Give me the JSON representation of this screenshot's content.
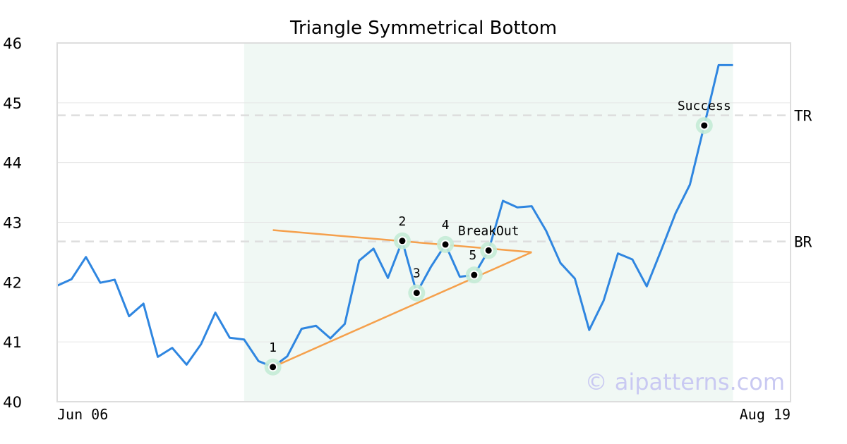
{
  "chart_data": {
    "type": "line",
    "title": "Triangle Symmetrical Bottom",
    "xlabel": "",
    "ylabel": "",
    "ylim": [
      40,
      46
    ],
    "yticks": [
      40,
      41,
      42,
      43,
      44,
      45,
      46
    ],
    "x_first_label": "Jun 06",
    "x_last_label": "Aug 19",
    "x_range": [
      0,
      51
    ],
    "grid": "horizontal",
    "series": [
      {
        "color": "#2f86e0",
        "x": [
          0,
          1,
          2,
          3,
          4,
          5,
          6,
          7,
          8,
          9,
          10,
          11,
          12,
          13,
          14,
          15,
          16,
          17,
          18,
          19,
          20,
          21,
          22,
          23,
          24,
          25,
          26,
          27,
          28,
          29,
          30,
          31,
          32,
          33,
          34,
          35,
          36,
          37,
          38,
          39,
          40,
          41,
          42,
          43,
          44,
          45,
          46,
          47,
          48,
          49,
          50,
          51
        ],
        "values": [
          41.94,
          42.05,
          42.42,
          41.99,
          42.04,
          41.43,
          41.64,
          40.75,
          40.9,
          40.62,
          40.96,
          41.49,
          41.07,
          41.04,
          40.68,
          40.58,
          40.76,
          41.22,
          41.27,
          41.06,
          41.3,
          42.36,
          42.56,
          42.07,
          42.69,
          41.82,
          42.26,
          42.63,
          42.09,
          42.12,
          42.53,
          43.36,
          43.25,
          43.27,
          42.86,
          42.32,
          42.06,
          41.2,
          41.69,
          42.48,
          42.38,
          41.93,
          42.53,
          43.15,
          43.63,
          44.62,
          45.63,
          45.63,
          null,
          null,
          null,
          null
        ]
      }
    ],
    "shaded_range": [
      13,
      47
    ],
    "shaded_color": "#f0f8f4",
    "levels": [
      {
        "label": "TR",
        "value": 44.79
      },
      {
        "label": "BR",
        "value": 42.68
      }
    ],
    "trendlines": [
      {
        "x": [
          15,
          33
        ],
        "y": [
          42.87,
          42.5
        ],
        "color": "#f5a04c"
      },
      {
        "x": [
          15,
          33
        ],
        "y": [
          40.58,
          42.5
        ],
        "color": "#f5a04c"
      }
    ],
    "markers": [
      {
        "label": "1",
        "x": 15,
        "y": 40.58,
        "label_pos": "above"
      },
      {
        "label": "2",
        "x": 24,
        "y": 42.69,
        "label_pos": "above"
      },
      {
        "label": "3",
        "x": 25,
        "y": 41.82,
        "label_pos": "above"
      },
      {
        "label": "4",
        "x": 27,
        "y": 42.63,
        "label_pos": "above"
      },
      {
        "label": "5",
        "x": 29,
        "y": 42.12,
        "label_pos": "left"
      },
      {
        "label": "BreakOut",
        "x": 30,
        "y": 42.53,
        "label_pos": "above"
      },
      {
        "label": "Success",
        "x": 45,
        "y": 44.62,
        "label_pos": "above"
      }
    ],
    "watermark": "© aipatterns.com"
  }
}
